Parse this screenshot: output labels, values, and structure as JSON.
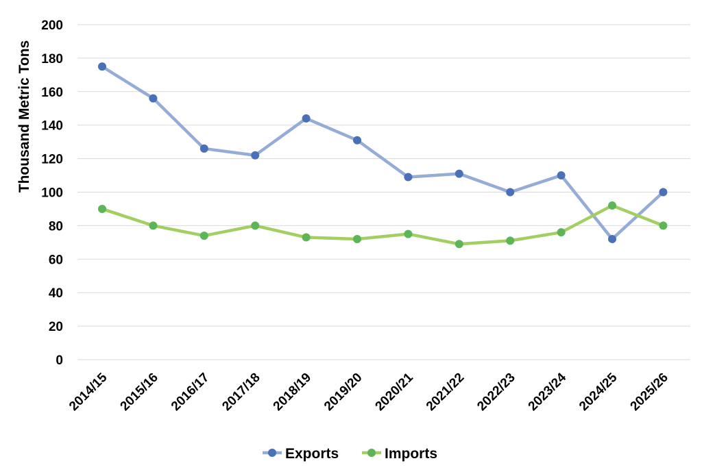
{
  "chart_data": {
    "type": "line",
    "title": "",
    "xlabel": "",
    "ylabel": "Thousand Metric Tons",
    "ylim": [
      0,
      200
    ],
    "ytick_step": 20,
    "grid": true,
    "legend_position": "bottom-center",
    "categories": [
      "2014/15",
      "2015/16",
      "2016/17",
      "2017/18",
      "2018/19",
      "2019/20",
      "2020/21",
      "2021/22",
      "2022/23",
      "2023/24",
      "2024/25",
      "2025/26"
    ],
    "series": [
      {
        "name": "Exports",
        "line_color": "#94ACD6",
        "marker_color": "#4A70B8",
        "values": [
          175,
          156,
          126,
          122,
          144,
          131,
          109,
          111,
          100,
          110,
          72,
          100
        ]
      },
      {
        "name": "Imports",
        "line_color": "#A3CF62",
        "marker_color": "#5CB557",
        "values": [
          90,
          80,
          74,
          80,
          73,
          72,
          75,
          69,
          71,
          76,
          92,
          80
        ]
      }
    ]
  }
}
